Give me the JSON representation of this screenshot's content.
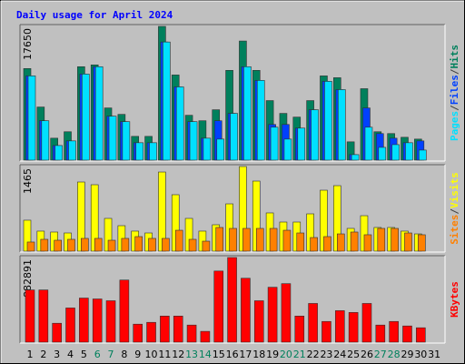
{
  "chart_data": [
    {
      "type": "bar",
      "title": "Daily usage for April 2024",
      "series": [
        {
          "name": "Hits",
          "color": "#00805c",
          "values": [
            12090,
            7010,
            2900,
            3750,
            12330,
            12570,
            6890,
            6040,
            3140,
            3140,
            17650,
            11240,
            5920,
            5200,
            6650,
            11850,
            15720,
            11850,
            7860,
            6170,
            5680,
            7860,
            11120,
            10880,
            2420,
            9430,
            3750,
            3510,
            3020,
            2780,
            null
          ]
        },
        {
          "name": "Files",
          "color": "#0040ff",
          "values": [
            11120,
            5200,
            1930,
            2540,
            11360,
            12330,
            5800,
            5080,
            2300,
            2300,
            15590,
            9670,
            5080,
            2900,
            5200,
            6170,
            12330,
            10520,
            4710,
            4710,
            4230,
            6650,
            10400,
            9310,
            730,
            6890,
            3510,
            2900,
            2300,
            2540,
            null
          ]
        },
        {
          "name": "Pages",
          "color": "#00e0ff",
          "values": [
            11120,
            5200,
            1930,
            2540,
            11360,
            12330,
            5800,
            5080,
            2300,
            2300,
            15590,
            9670,
            5080,
            2900,
            2780,
            6170,
            12330,
            10520,
            4350,
            2780,
            4230,
            6650,
            10400,
            9310,
            730,
            4350,
            1690,
            2050,
            2300,
            1330,
            null
          ]
        }
      ],
      "legend_separator": "/",
      "ylim": [
        0,
        17650
      ],
      "yticks": [
        17650
      ]
    },
    {
      "type": "bar",
      "series": [
        {
          "name": "Visits",
          "color": "#ffff00",
          "values": [
            536,
            347,
            331,
            315,
            1197,
            1150,
            567,
            441,
            347,
            315,
            1370,
            977,
            567,
            347,
            457,
            819,
            1465,
            1213,
            662,
            504,
            504,
            646,
            1055,
            1134,
            394,
            614,
            410,
            410,
            347,
            299,
            null
          ]
        },
        {
          "name": "Sites",
          "color": "#ff8000",
          "values": [
            158,
            205,
            189,
            205,
            221,
            221,
            189,
            221,
            252,
            221,
            221,
            362,
            205,
            173,
            410,
            394,
            394,
            394,
            394,
            362,
            315,
            236,
            252,
            299,
            331,
            284,
            394,
            394,
            315,
            284,
            null
          ]
        }
      ],
      "legend_separator": "/",
      "ylim": [
        0,
        1465
      ],
      "yticks": [
        1465
      ]
    },
    {
      "type": "bar",
      "categories": [
        "1",
        "2",
        "3",
        "4",
        "5",
        "6",
        "7",
        "8",
        "9",
        "10",
        "11",
        "12",
        "13",
        "14",
        "15",
        "16",
        "17",
        "18",
        "19",
        "20",
        "21",
        "22",
        "23",
        "24",
        "25",
        "26",
        "27",
        "28",
        "29",
        "30",
        "31"
      ],
      "category_colors": [
        "#000",
        "#000",
        "#000",
        "#000",
        "#000",
        "#00805c",
        "#00805c",
        "#000",
        "#000",
        "#000",
        "#000",
        "#000",
        "#00805c",
        "#00805c",
        "#000",
        "#000",
        "#000",
        "#000",
        "#000",
        "#00805c",
        "#00805c",
        "#000",
        "#000",
        "#000",
        "#000",
        "#000",
        "#00805c",
        "#00805c",
        "#000",
        "#000",
        "#000"
      ],
      "series": [
        {
          "name": "KBytes",
          "color": "#ff0000",
          "values": [
            544763,
            544763,
            197241,
            356913,
            460230,
            450838,
            432053,
            648079,
            187849,
            206634,
            272381,
            272381,
            178456,
            112709,
            742003,
            882891,
            666864,
            432053,
            572941,
            610510,
            272381,
            403876,
            216026,
            328735,
            309953,
            403876,
            178456,
            216026,
            169064,
            150279,
            null
          ]
        }
      ],
      "ylim": [
        0,
        882891
      ],
      "yticks": [
        882891
      ]
    }
  ]
}
